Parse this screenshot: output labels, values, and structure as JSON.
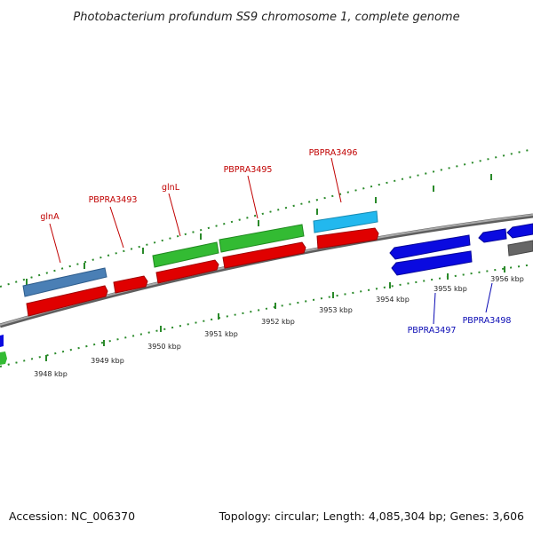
{
  "title": "Photobacterium profundum SS9 chromosome 1, complete genome",
  "footer": {
    "accession": "Accession: NC_006370",
    "summary": "Topology: circular; Length: 4,085,304 bp; Genes: 3,606"
  },
  "colors": {
    "backbone": "#8a8a8a",
    "ticks": "#2a8a2a",
    "cds": "#e00000",
    "gene_green": "#33bb33",
    "gene_steel": "#4a7fb5",
    "gene_cyan": "#22b8ee",
    "gene_blue": "#0a0ae0",
    "gene_gray": "#666666",
    "label_red": "#c00000",
    "label_blue": "#0a0ab4"
  },
  "scale_labels": [
    "3948 kbp",
    "3949 kbp",
    "3950 kbp",
    "3951 kbp",
    "3952 kbp",
    "3953 kbp",
    "3954 kbp",
    "3955 kbp",
    "3956 kbp"
  ],
  "gene_labels": [
    {
      "text": "glnA",
      "strand": "forward"
    },
    {
      "text": "PBPRA3493",
      "strand": "forward"
    },
    {
      "text": "glnL",
      "strand": "forward"
    },
    {
      "text": "PBPRA3495",
      "strand": "forward"
    },
    {
      "text": "PBPRA3496",
      "strand": "forward"
    },
    {
      "text": "PBPRA3497",
      "strand": "reverse"
    },
    {
      "text": "PBPRA3498",
      "strand": "reverse"
    }
  ]
}
